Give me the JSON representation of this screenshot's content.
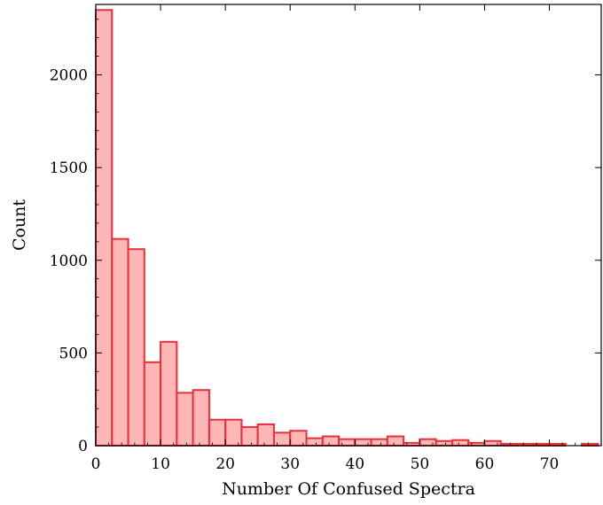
{
  "chart_data": {
    "type": "bar",
    "xlabel": "Number Of Confused Spectra",
    "ylabel": "Count",
    "xlim": [
      0,
      78
    ],
    "ylim": [
      0,
      2380
    ],
    "grid": false,
    "bar_color": "#ffb6b6",
    "edge_color": "#e8303a",
    "x_ticks": [
      0,
      10,
      20,
      30,
      40,
      50,
      60,
      70
    ],
    "y_ticks": [
      0,
      500,
      1000,
      1500,
      2000
    ],
    "bin_width": 2.5,
    "bin_starts": [
      0,
      2.5,
      5,
      7.5,
      10,
      12.5,
      15,
      17.5,
      20,
      22.5,
      25,
      27.5,
      30,
      32.5,
      35,
      37.5,
      40,
      42.5,
      45,
      47.5,
      50,
      52.5,
      55,
      57.5,
      60,
      62.5,
      65,
      67.5,
      70,
      72.5,
      75,
      77.5
    ],
    "values": [
      2350,
      1115,
      1060,
      450,
      560,
      285,
      300,
      140,
      140,
      100,
      115,
      70,
      80,
      40,
      50,
      35,
      35,
      35,
      50,
      15,
      35,
      25,
      30,
      15,
      25,
      10,
      10,
      10,
      10,
      0,
      10,
      0
    ]
  }
}
